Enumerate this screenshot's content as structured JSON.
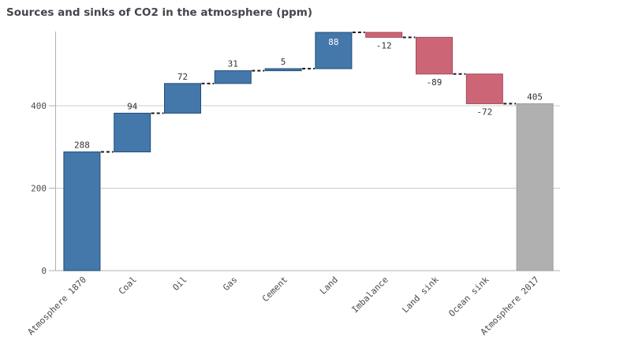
{
  "title": "Sources and sinks of CO2 in the atmosphere (ppm)",
  "chart_data": {
    "type": "bar",
    "subtype": "waterfall",
    "title": "Sources and sinks of CO2 in the atmosphere (ppm)",
    "categories": [
      "Atmosphere 1870",
      "Coal",
      "Oil",
      "Gas",
      "Cement",
      "Land",
      "Imbalance",
      "Land sink",
      "Ocean sink",
      "Atmosphere 2017"
    ],
    "values": [
      288,
      94,
      72,
      31,
      5,
      88,
      -12,
      -89,
      -72,
      405
    ],
    "bar_roles": [
      "absolute",
      "relative",
      "relative",
      "relative",
      "relative",
      "relative",
      "relative",
      "relative",
      "relative",
      "total"
    ],
    "data_labels": [
      "288",
      "94",
      "72",
      "31",
      "5",
      "88",
      "-12",
      "-89",
      "-72",
      "405"
    ],
    "cumulative_levels": [
      288,
      382,
      454,
      485,
      490,
      578,
      566,
      477,
      405,
      405
    ],
    "xlabel": "",
    "ylabel": "",
    "yticks": [
      0,
      200,
      400
    ],
    "ylim": [
      0,
      580
    ],
    "grid": true,
    "legend": false,
    "connector_style": "dashed",
    "colors": {
      "positive": "#4477aa",
      "positive_border": "#1f4e79",
      "negative": "#cc6677",
      "negative_border": "#a8465c",
      "total": "#b0b0b0",
      "total_border": "#9e9e9e",
      "connector": "#1a1a1a",
      "axis": "#b0b0b0",
      "gridline": "#cccccc",
      "label": "#333333",
      "label_inside": "#ffffff",
      "tick_label": "#4d4d4d",
      "title": "#45454d"
    }
  }
}
